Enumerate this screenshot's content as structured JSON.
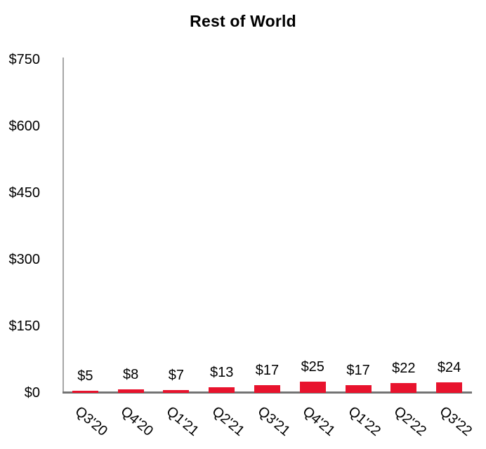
{
  "chart_data": {
    "type": "bar",
    "title": "Rest of World",
    "categories": [
      "Q3'20",
      "Q4'20",
      "Q1'21",
      "Q2'21",
      "Q3'21",
      "Q4'21",
      "Q1'22",
      "Q2'22",
      "Q3'22"
    ],
    "values": [
      5,
      8,
      7,
      13,
      17,
      25,
      17,
      22,
      24
    ],
    "data_labels": [
      "$5",
      "$8",
      "$7",
      "$13",
      "$17",
      "$25",
      "$17",
      "$22",
      "$24"
    ],
    "xlabel": "",
    "ylabel": "",
    "ylim": [
      0,
      750
    ],
    "ytick_interval": 150,
    "yticks": [
      {
        "value": 0,
        "label": "$0"
      },
      {
        "value": 150,
        "label": "$150"
      },
      {
        "value": 300,
        "label": "$300"
      },
      {
        "value": 450,
        "label": "$450"
      },
      {
        "value": 600,
        "label": "$600"
      },
      {
        "value": 750,
        "label": "$750"
      }
    ],
    "grid": false,
    "legend_position": "none",
    "colors": {
      "bar": "#e8132d",
      "y_axis_line": "#a6a6a6",
      "x_axis_line": "#737373",
      "text": "#000000",
      "background": "#ffffff"
    }
  }
}
